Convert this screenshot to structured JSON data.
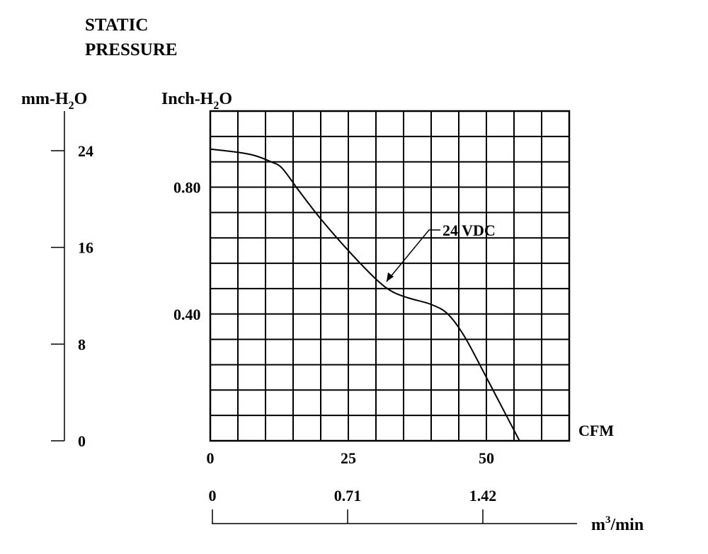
{
  "chart_data": {
    "type": "line",
    "title": [
      "STATIC",
      "PRESSURE"
    ],
    "y_axes": {
      "mm": {
        "label_main": "mm-H",
        "label_sub": "2",
        "label_end": "O",
        "ticks": [
          "24",
          "16",
          "8",
          "0"
        ],
        "tick_values": [
          24,
          16,
          8,
          0
        ],
        "range": [
          0,
          24
        ]
      },
      "inch": {
        "label_main": "Inch-H",
        "label_sub": "2",
        "label_end": "O",
        "ticks": [
          "0.80",
          "0.40"
        ],
        "tick_values": [
          0.8,
          0.4
        ],
        "range": [
          0,
          1.04
        ]
      }
    },
    "x_axes": {
      "cfm": {
        "label": "CFM",
        "ticks": [
          "0",
          "25",
          "50"
        ],
        "tick_values": [
          0,
          25,
          50
        ],
        "range": [
          0,
          65
        ]
      },
      "m3": {
        "label_pre": "m",
        "label_sup": "3",
        "label_post": "/min",
        "ticks": [
          "0",
          "0.71",
          "1.42"
        ],
        "tick_values": [
          0,
          0.71,
          1.42
        ]
      }
    },
    "grid": {
      "on": true,
      "x_divisions": 13,
      "y_divisions": 13
    },
    "series": [
      {
        "name": "24 VDC",
        "x": [
          0,
          5,
          8,
          11,
          13,
          16,
          20,
          25,
          30,
          33,
          36,
          40,
          43,
          46,
          50,
          53,
          56
        ],
        "y": [
          0.92,
          0.91,
          0.9,
          0.88,
          0.86,
          0.79,
          0.7,
          0.6,
          0.51,
          0.47,
          0.45,
          0.43,
          0.4,
          0.33,
          0.2,
          0.1,
          0.0
        ]
      }
    ],
    "annotation": {
      "text": "24 VDC",
      "x": 31.5,
      "y": 0.5
    }
  }
}
